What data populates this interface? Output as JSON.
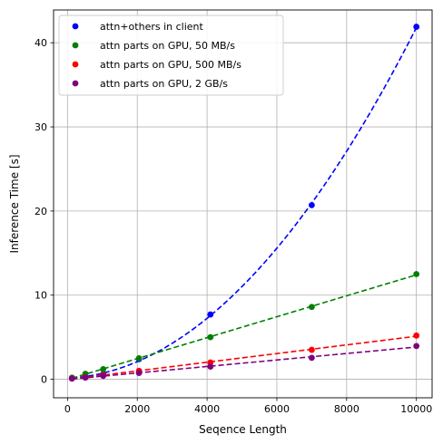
{
  "chart_data": {
    "type": "scatter",
    "title": "",
    "xlabel": "Seqence Length",
    "ylabel": "Inference Time [s]",
    "xlim": [
      -400,
      10450
    ],
    "ylim": [
      -2.2,
      43.9
    ],
    "x_ticks": [
      0,
      2000,
      4000,
      6000,
      8000,
      10000
    ],
    "y_ticks": [
      0,
      10,
      20,
      30,
      40
    ],
    "grid": true,
    "legend_position": "top-left",
    "x": [
      128,
      512,
      1024,
      2048,
      4096,
      7000,
      10000
    ],
    "series": [
      {
        "name": "attn+others in client",
        "color": "#0000ff",
        "values": [
          0.15,
          0.3,
          0.6,
          2.4,
          7.7,
          20.7,
          41.9
        ],
        "fit": "quadratic"
      },
      {
        "name": "attn parts on GPU, 50 MB/s",
        "color": "#008000",
        "values": [
          0.2,
          0.65,
          1.2,
          2.5,
          5.0,
          8.6,
          12.5
        ],
        "fit": "linear"
      },
      {
        "name": "attn parts on GPU, 500 MB/s",
        "color": "#ff0000",
        "values": [
          0.1,
          0.25,
          0.5,
          1.0,
          2.0,
          3.5,
          5.2
        ],
        "fit": "linear"
      },
      {
        "name": "attn parts on GPU, 2 GB/s",
        "color": "#800080",
        "values": [
          0.08,
          0.2,
          0.4,
          0.75,
          1.5,
          2.55,
          3.95
        ],
        "fit": "linear"
      }
    ]
  }
}
